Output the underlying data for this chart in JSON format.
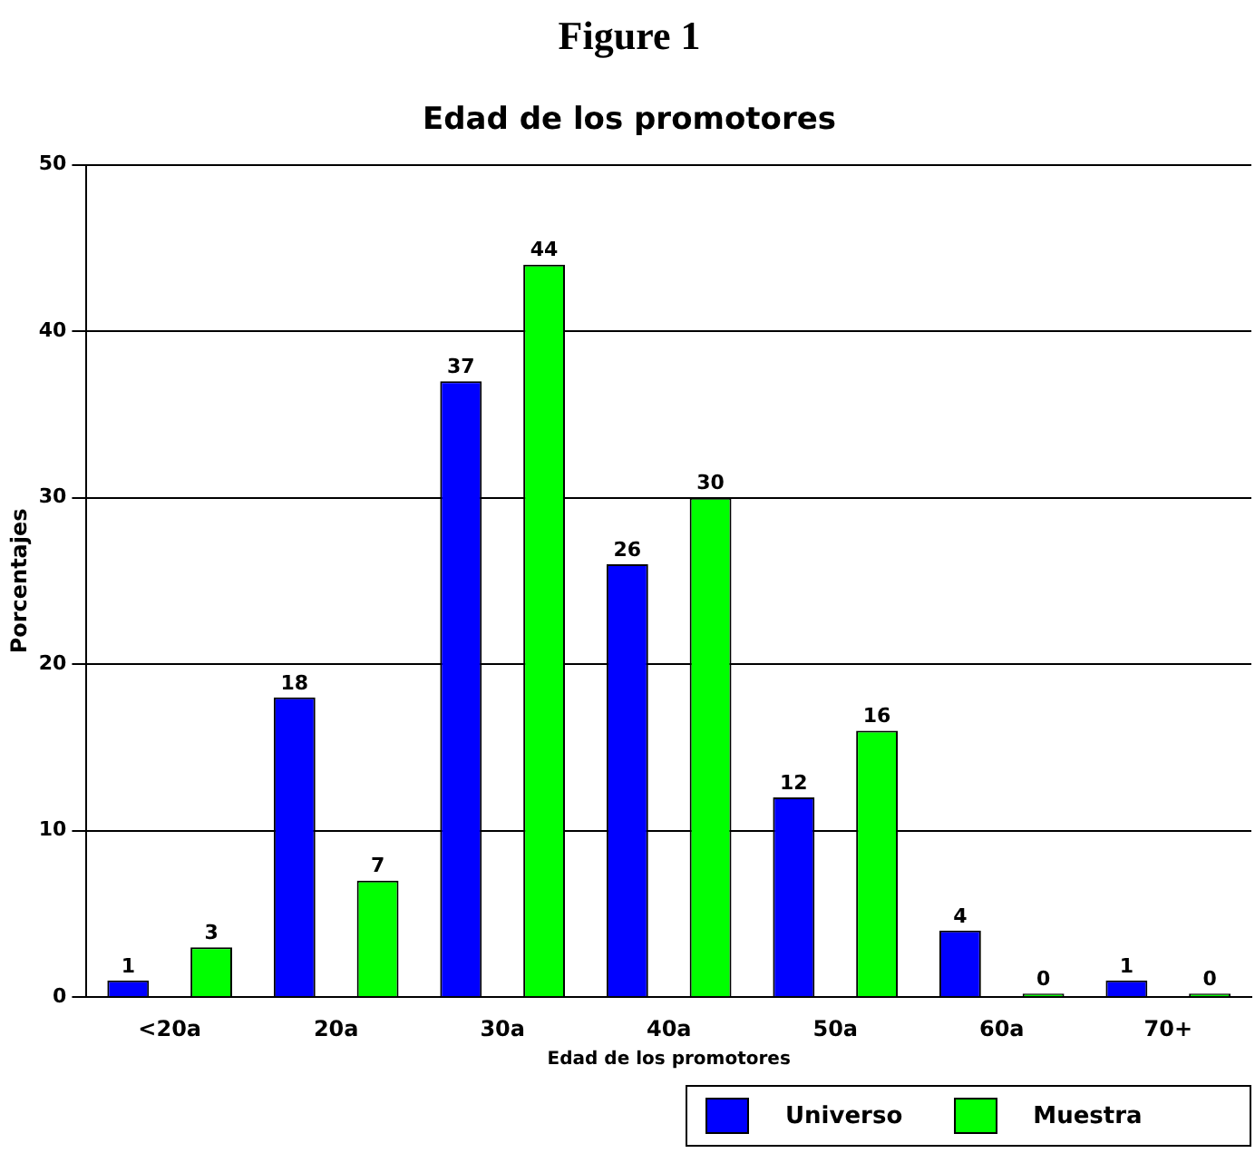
{
  "chart_data": {
    "type": "bar",
    "title": "Figure 1",
    "subtitle": "Edad de los promotores",
    "xlabel": "Edad de los promotores",
    "ylabel": "Porcentajes",
    "categories": [
      "<20a",
      "20a",
      "30a",
      "40a",
      "50a",
      "60a",
      "70+"
    ],
    "series": [
      {
        "name": "Universo",
        "color": "#0000ff",
        "values": [
          1,
          18,
          37,
          26,
          12,
          4,
          1
        ]
      },
      {
        "name": "Muestra",
        "color": "#00ff00",
        "values": [
          3,
          7,
          44,
          30,
          16,
          0,
          0
        ]
      }
    ],
    "ylim": [
      0,
      50
    ],
    "yticks": [
      0,
      10,
      20,
      30,
      40,
      50
    ],
    "grid": "y",
    "legend": "bottom right",
    "data_labels": true
  }
}
